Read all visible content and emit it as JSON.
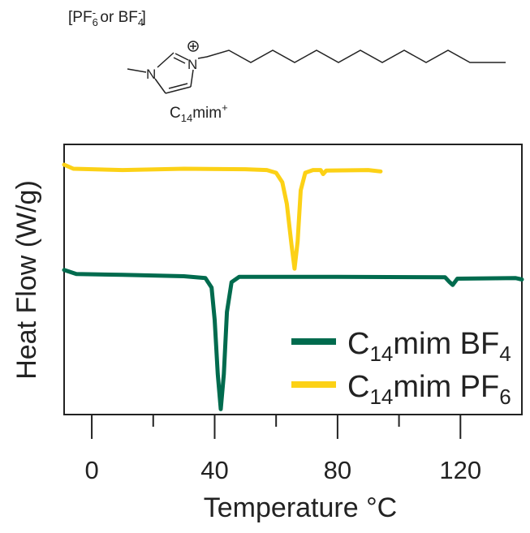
{
  "structure": {
    "anion_label": {
      "open": "[PF",
      "sub1": "6",
      "sup1": "-",
      "mid": " or BF",
      "sub2": "4",
      "sup2": "-",
      "close": "]"
    },
    "cation_label": {
      "base": "C",
      "sub": "14",
      "rest": "mim",
      "sup": "+"
    },
    "atoms": {
      "n1": "N",
      "n3": "N",
      "charge": "+"
    }
  },
  "chart_data": {
    "type": "line",
    "xlabel": "Temperature °C",
    "ylabel": "Heat Flow (W/g)",
    "xlim": [
      -9,
      140
    ],
    "ylim": [
      0,
      1
    ],
    "y_ticks_shown": false,
    "x_ticks": [
      0,
      20,
      40,
      60,
      80,
      100,
      120
    ],
    "x_tick_labels": [
      "0",
      "40",
      "80",
      "120"
    ],
    "x_tick_label_values": [
      0,
      40,
      80,
      120
    ],
    "grid": false,
    "legend_position": "bottom-right",
    "series": [
      {
        "name": "C14mim BF4",
        "legend": {
          "base": "C",
          "sub": "14",
          "rest": "mim BF",
          "sub2": "4"
        },
        "color": "#006b4e",
        "points": [
          [
            -9,
            0.535
          ],
          [
            -5,
            0.52
          ],
          [
            10,
            0.517
          ],
          [
            30,
            0.512
          ],
          [
            37,
            0.505
          ],
          [
            39,
            0.47
          ],
          [
            40,
            0.35
          ],
          [
            41,
            0.15
          ],
          [
            42,
            0.02
          ],
          [
            43,
            0.15
          ],
          [
            44,
            0.38
          ],
          [
            45.5,
            0.49
          ],
          [
            48,
            0.51
          ],
          [
            80,
            0.51
          ],
          [
            115,
            0.508
          ],
          [
            116.5,
            0.49
          ],
          [
            117.5,
            0.48
          ],
          [
            119,
            0.503
          ],
          [
            138,
            0.505
          ],
          [
            140,
            0.5
          ]
        ]
      },
      {
        "name": "C14mim PF6",
        "legend": {
          "base": "C",
          "sub": "14",
          "rest": "mim PF",
          "sub2": "6"
        },
        "color": "#fcd116",
        "points": [
          [
            -9,
            0.925
          ],
          [
            -6,
            0.91
          ],
          [
            10,
            0.905
          ],
          [
            30,
            0.91
          ],
          [
            50,
            0.908
          ],
          [
            57,
            0.905
          ],
          [
            60,
            0.895
          ],
          [
            62,
            0.86
          ],
          [
            63.5,
            0.78
          ],
          [
            65,
            0.63
          ],
          [
            66,
            0.54
          ],
          [
            67,
            0.64
          ],
          [
            68,
            0.83
          ],
          [
            69.5,
            0.895
          ],
          [
            72,
            0.905
          ],
          [
            74.5,
            0.905
          ],
          [
            75.3,
            0.89
          ],
          [
            76.3,
            0.903
          ],
          [
            90,
            0.905
          ],
          [
            94,
            0.9
          ]
        ]
      }
    ]
  }
}
